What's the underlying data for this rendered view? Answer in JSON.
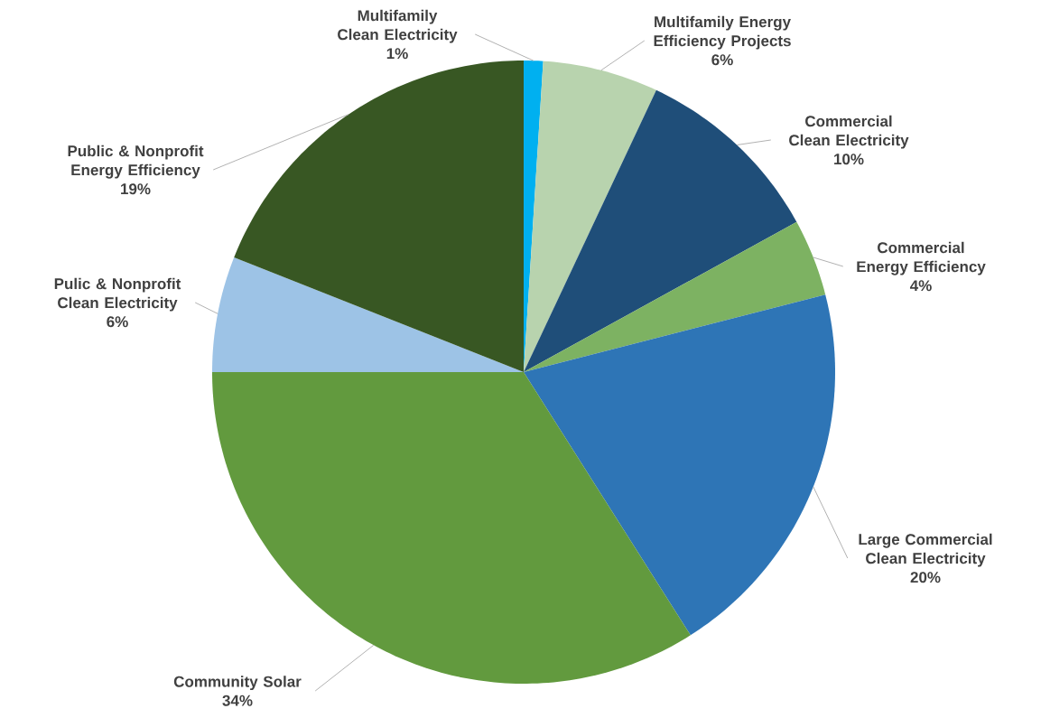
{
  "chart_data": {
    "type": "pie",
    "categories": [
      "Multifamily Clean Electricity",
      "Multifamily Energy Efficiency Projects",
      "Commercial Clean Electricity",
      "Commercial Energy Efficiency",
      "Large Commercial Clean Electricity",
      "Community Solar",
      "Pulic & Nonprofit Clean Electricity",
      "Public & Nonprofit Energy Efficiency"
    ],
    "values": [
      1,
      6,
      10,
      4,
      20,
      34,
      6,
      19
    ],
    "value_labels": [
      "1%",
      "6%",
      "10%",
      "4%",
      "20%",
      "34%",
      "6%",
      "19%"
    ],
    "colors": [
      "#00b0f0",
      "#b8d3ae",
      "#1f4e79",
      "#7db262",
      "#2e75b6",
      "#629a3e",
      "#9dc3e6",
      "#385723"
    ],
    "legend": false
  }
}
